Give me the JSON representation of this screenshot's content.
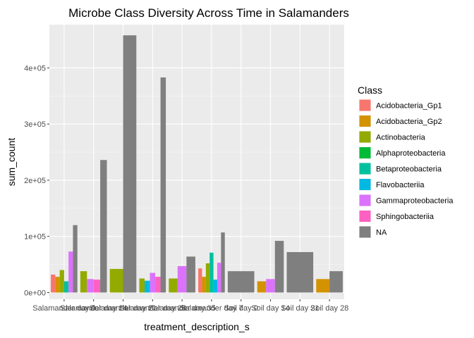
{
  "chart_data": {
    "type": "bar",
    "title": "Microbe Class Diversity Across Time in Salamanders",
    "xlabel": "treatment_description_s",
    "ylabel": "sum_count",
    "ylim": [
      -12000,
      477000
    ],
    "yticks": [
      0,
      100000,
      200000,
      300000,
      400000
    ],
    "ytick_labels": [
      "0e+00",
      "1e+05",
      "2e+05",
      "3e+05",
      "4e+05"
    ],
    "legend_title": "Class",
    "legend_position": "right",
    "grid": true,
    "classes": [
      {
        "name": "Acidobacteria_Gp1",
        "color": "#F8766D"
      },
      {
        "name": "Acidobacteria_Gp2",
        "color": "#D39200"
      },
      {
        "name": "Actinobacteria",
        "color": "#93AA00"
      },
      {
        "name": "Alphaproteobacteria",
        "color": "#00BA38"
      },
      {
        "name": "Betaproteobacteria",
        "color": "#00C19F"
      },
      {
        "name": "Flavobacteriia",
        "color": "#00B9E3"
      },
      {
        "name": "Gammaproteobacteria",
        "color": "#DB72FB"
      },
      {
        "name": "Sphingobacteriia",
        "color": "#FF61C3"
      },
      {
        "name": "NA",
        "color": "#7F7F7F"
      }
    ],
    "groups": [
      {
        "label": "Salamander day 0",
        "bars": [
          {
            "class": "Acidobacteria_Gp1",
            "value": 32000
          },
          {
            "class": "Acidobacteria_Gp2",
            "value": 28000
          },
          {
            "class": "Actinobacteria",
            "value": 40000
          },
          {
            "class": "Betaproteobacteria",
            "value": 20000
          },
          {
            "class": "Gammaproteobacteria",
            "value": 73000
          },
          {
            "class": "NA",
            "value": 120000
          }
        ]
      },
      {
        "label": "Salamander day 14",
        "bars": [
          {
            "class": "Actinobacteria",
            "value": 38000
          },
          {
            "class": "Gammaproteobacteria",
            "value": 24000
          },
          {
            "class": "Sphingobacteriia",
            "value": 23000
          },
          {
            "class": "NA",
            "value": 236000
          }
        ]
      },
      {
        "label": "Salamander day 21",
        "bars": [
          {
            "class": "Actinobacteria",
            "value": 42000
          },
          {
            "class": "NA",
            "value": 458000
          }
        ]
      },
      {
        "label": "Salamander day 28",
        "bars": [
          {
            "class": "Actinobacteria",
            "value": 25000
          },
          {
            "class": "Flavobacteriia",
            "value": 21000
          },
          {
            "class": "Gammaproteobacteria",
            "value": 35000
          },
          {
            "class": "Sphingobacteriia",
            "value": 28000
          },
          {
            "class": "NA",
            "value": 383000
          }
        ]
      },
      {
        "label": "Salamander day 35",
        "bars": [
          {
            "class": "Actinobacteria",
            "value": 25000
          },
          {
            "class": "Gammaproteobacteria",
            "value": 47000
          },
          {
            "class": "NA",
            "value": 64000
          }
        ]
      },
      {
        "label": "Salamander day 7",
        "bars": [
          {
            "class": "Acidobacteria_Gp1",
            "value": 43000
          },
          {
            "class": "Acidobacteria_Gp2",
            "value": 28000
          },
          {
            "class": "Actinobacteria",
            "value": 52000
          },
          {
            "class": "Betaproteobacteria",
            "value": 71000
          },
          {
            "class": "Flavobacteriia",
            "value": 23000
          },
          {
            "class": "Gammaproteobacteria",
            "value": 53000
          },
          {
            "class": "NA",
            "value": 107000
          }
        ]
      },
      {
        "label": "Soil day 0",
        "bars": [
          {
            "class": "NA",
            "value": 38000
          }
        ]
      },
      {
        "label": "Soil day 14",
        "bars": [
          {
            "class": "Acidobacteria_Gp2",
            "value": 20000
          },
          {
            "class": "Gammaproteobacteria",
            "value": 24000
          },
          {
            "class": "NA",
            "value": 92000
          }
        ]
      },
      {
        "label": "Soil day 21",
        "bars": [
          {
            "class": "NA",
            "value": 72000
          }
        ]
      },
      {
        "label": "Soil day 28",
        "bars": [
          {
            "class": "Acidobacteria_Gp2",
            "value": 24000
          },
          {
            "class": "NA",
            "value": 38000
          }
        ]
      }
    ]
  }
}
